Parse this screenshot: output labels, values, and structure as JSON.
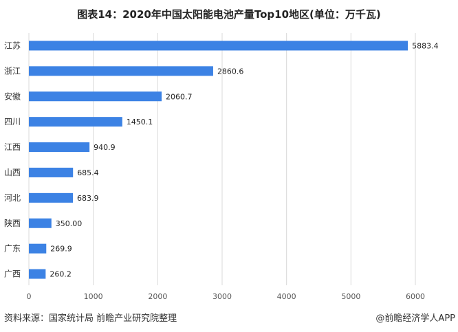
{
  "chart_data": {
    "type": "bar",
    "orientation": "horizontal",
    "title": "图表14：2020年中国太阳能电池产量Top10地区(单位：万千瓦)",
    "categories": [
      "江苏",
      "浙江",
      "安徽",
      "四川",
      "江西",
      "山西",
      "河北",
      "陕西",
      "广东",
      "广西"
    ],
    "values": [
      5883.4,
      2860.6,
      2060.7,
      1450.1,
      940.9,
      685.4,
      683.9,
      350.0,
      269.9,
      260.2
    ],
    "value_labels": [
      "5883.4",
      "2860.6",
      "2060.7",
      "1450.1",
      "940.9",
      "685.4",
      "683.9",
      "350.00",
      "269.9",
      "260.2"
    ],
    "xlim": [
      0,
      6000
    ],
    "xticks": [
      "0",
      "1000",
      "2000",
      "3000",
      "4000",
      "5000",
      "6000"
    ],
    "grid": "vertical",
    "bar_color": "#3c82e4"
  },
  "footer": {
    "source": "资料来源：国家统计局 前瞻产业研究院整理",
    "brand": "@前瞻经济学人APP"
  }
}
